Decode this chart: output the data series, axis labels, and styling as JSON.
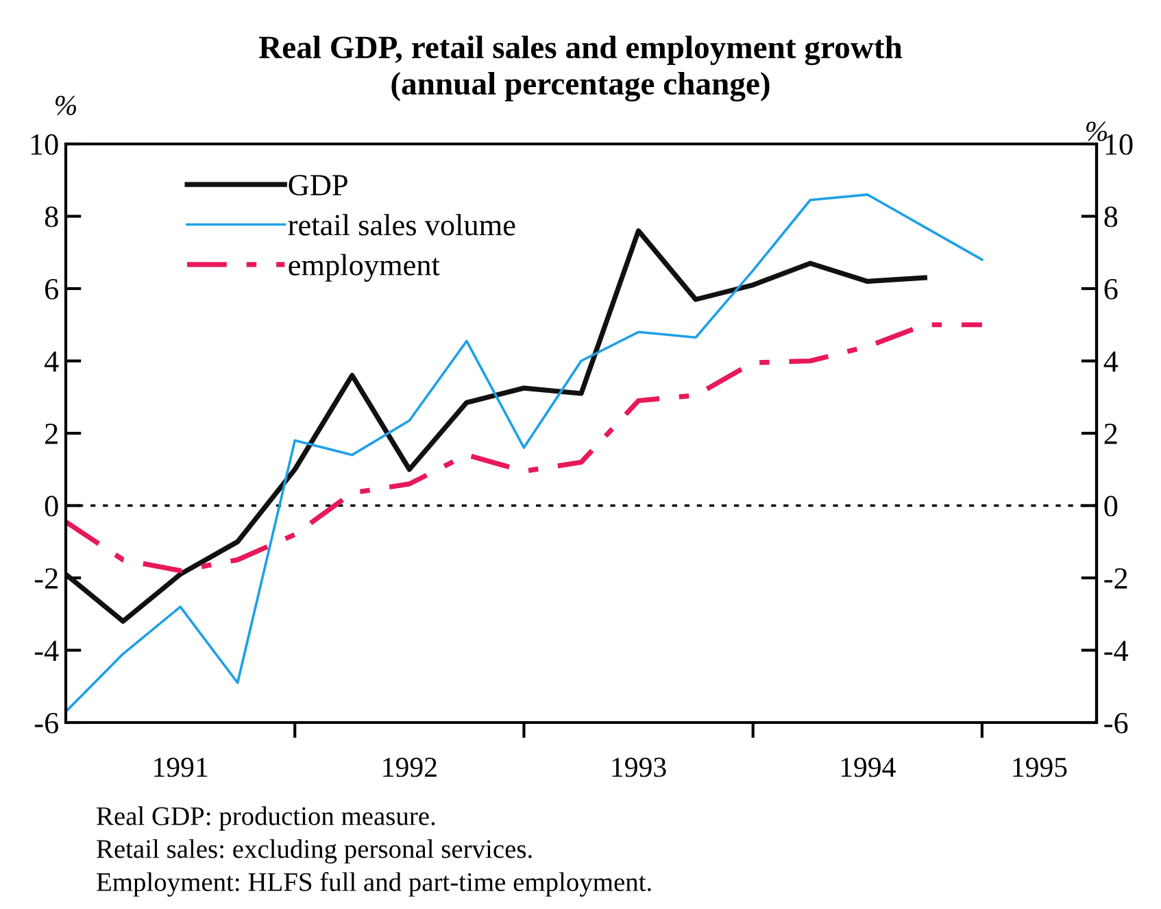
{
  "chart_data": {
    "type": "line",
    "title": "Real GDP, retail sales and employment growth\n(annual percentage change)",
    "ylabel": "%",
    "y2label": "%",
    "x": [
      1991.0,
      1991.25,
      1991.5,
      1991.75,
      1992.0,
      1992.25,
      1992.5,
      1992.75,
      1993.0,
      1993.25,
      1993.5,
      1993.75,
      1994.0,
      1994.25,
      1994.5,
      1994.75,
      1995.0
    ],
    "series": [
      {
        "name": "GDP",
        "color": "#111111",
        "line_style": "solid",
        "values": [
          -1.9,
          -3.2,
          -1.9,
          -1.0,
          1.0,
          3.6,
          1.0,
          2.85,
          3.25,
          3.1,
          7.6,
          5.7,
          6.1,
          6.7,
          6.2,
          6.3,
          null
        ]
      },
      {
        "name": "retail sales volume",
        "color": "#1ea0e6",
        "line_style": "solid",
        "values": [
          -5.7,
          -4.1,
          -2.8,
          -4.9,
          1.8,
          1.4,
          2.35,
          4.55,
          1.6,
          4.0,
          4.8,
          4.65,
          6.5,
          8.45,
          8.6,
          7.7,
          6.8
        ]
      },
      {
        "name": "employment",
        "color": "#e8185a",
        "line_style": "dashed",
        "values": [
          -0.45,
          -1.5,
          -1.8,
          -1.5,
          -0.8,
          0.35,
          0.6,
          1.4,
          0.95,
          1.2,
          2.9,
          3.05,
          3.95,
          4.0,
          4.4,
          5.0,
          5.0
        ]
      }
    ],
    "xlim": [
      1991.0,
      1995.5
    ],
    "xticks": [
      {
        "value": 1991.5,
        "label": "1991"
      },
      {
        "value": 1992.5,
        "label": "1992"
      },
      {
        "value": 1993.5,
        "label": "1993"
      },
      {
        "value": 1994.5,
        "label": "1994"
      },
      {
        "value": 1995.25,
        "label": "1995"
      },
      {
        "value": 1992.0,
        "label": null
      },
      {
        "value": 1993.0,
        "label": null
      },
      {
        "value": 1994.0,
        "label": null
      },
      {
        "value": 1995.0,
        "label": null
      }
    ],
    "ylim": [
      -6,
      10
    ],
    "yticks": [
      -6,
      -4,
      -2,
      0,
      2,
      4,
      6,
      8,
      10
    ],
    "y2lim": [
      -6,
      10
    ],
    "y2ticks": [
      -6,
      -4,
      -2,
      0,
      2,
      4,
      6,
      8,
      10
    ],
    "ref_lines": [
      {
        "axis": "y",
        "value": 0,
        "label": null,
        "color": "#000000",
        "line_style": "dotted"
      }
    ],
    "legend": "top left",
    "grid": false,
    "annotations": [
      "Real GDP: production measure.",
      "Retail sales: excluding personal services.",
      "Employment: HLFS full and part-time employment."
    ]
  }
}
